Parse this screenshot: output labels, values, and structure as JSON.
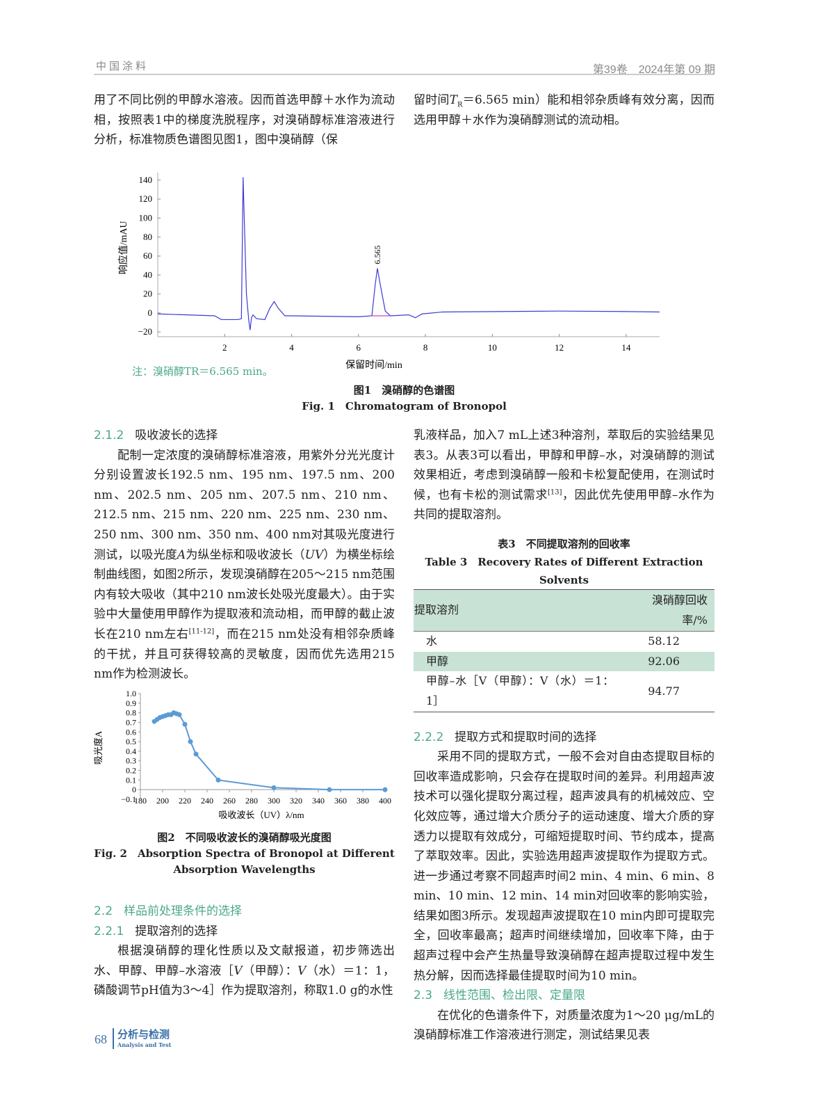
{
  "header": {
    "journal": "中国涂料",
    "issue": "第39卷　2024年第 09 期"
  },
  "left_top": [
    {
      "t": "用了不同比例的甲醇水溶液。因而首选甲醇＋水作为流动相，按照表1中的梯度洗脱程序，对溴硝醇标准溶液进行分析，标准物质色谱图见图1，图中溴硝醇（保"
    }
  ],
  "right_top": [
    {
      "t": "留时间"
    },
    {
      "t": "T",
      "s": "i"
    },
    {
      "t": "R",
      "s": "sub"
    },
    {
      "t": "＝6.565 min）能和相邻杂质峰有效分离，因而选用甲醇＋水作为溴硝醇测试的流动相。"
    }
  ],
  "fig1": {
    "note": "注：溴硝醇TR＝6.565 min。",
    "caption_cn": "图1　溴硝醇的色谱图",
    "caption_en": "Fig. 1　Chromatogram of Bronopol"
  },
  "sec_212": {
    "num": "2.1.2",
    "title": "吸收波长的选择"
  },
  "para_212": [
    {
      "t": "配制一定浓度的溴硝醇标准溶液，用紫外分光光度计分别设置波长192.5 nm、195 nm、197.5 nm、200 nm、202.5 nm、205 nm、207.5 nm、210 nm、212.5 nm、215 nm、220 nm、225 nm、230 nm、250 nm、300 nm、350 nm、400 nm对其吸光度进行测试，以吸光度"
    },
    {
      "t": "A",
      "s": "i"
    },
    {
      "t": "为纵坐标和吸收波长（"
    },
    {
      "t": "UV",
      "s": "i"
    },
    {
      "t": "）为横坐标绘制曲线图，如图2所示，发现溴硝醇在205～215 nm范围内有较大吸收（其中210 nm波长处吸光度最大）。由于实验中大量使用甲醇作为提取液和流动相，而甲醇的截止波长在210 nm左右"
    },
    {
      "t": "[11-12]",
      "s": "sup"
    },
    {
      "t": "，而在215 nm处没有相邻杂质峰的干扰，并且可获得较高的灵敏度，因而优先选用215 nm作为检测波长。"
    }
  ],
  "fig2": {
    "caption_cn": "图2　不同吸收波长的溴硝醇吸光度图",
    "caption_en_1": "Fig. 2　Absorption Spectra of Bronopol at Different",
    "caption_en_2": "Absorption Wavelengths"
  },
  "sec_22": {
    "num": "2.2",
    "title": "样品前处理条件的选择"
  },
  "sec_221": {
    "num": "2.2.1",
    "title": "提取溶剂的选择"
  },
  "para_221": [
    {
      "t": "根据溴硝醇的理化性质以及文献报道，初步筛选出水、甲醇、甲醇–水溶液［"
    },
    {
      "t": "V",
      "s": "i"
    },
    {
      "t": "（甲醇）："
    },
    {
      "t": "V",
      "s": "i"
    },
    {
      "t": "（水）＝1：1，磷酸调节pH值为3～4］作为提取溶剂，称取1.0 g的水性"
    }
  ],
  "para_221b": [
    {
      "t": "乳液样品，加入7 mL上述3种溶剂，萃取后的实验结果见表3。从表3可以看出，甲醇和甲醇–水，对溴硝醇的测试效果相近，考虑到溴硝醇一般和卡松复配使用，在测试时候，也有卡松的测试需求"
    },
    {
      "t": "[13]",
      "s": "sup"
    },
    {
      "t": "，因此优先使用甲醇–水作为共同的提取溶剂。"
    }
  ],
  "table3": {
    "title_cn": "表3　不同提取溶剂的回收率",
    "title_en": "Table 3　Recovery Rates of Different Extraction Solvents",
    "headers": [
      "提取溶剂",
      "溴硝醇回收率/%"
    ],
    "rows": [
      [
        "水",
        "58.12"
      ],
      [
        "甲醇",
        "92.06"
      ],
      [
        "甲醇–水［V（甲醇）：V（水）＝1：1］",
        "94.77"
      ]
    ]
  },
  "sec_222": {
    "num": "2.2.2",
    "title": "提取方式和提取时间的选择"
  },
  "para_222": [
    {
      "t": "采用不同的提取方式，一般不会对自由态提取目标的回收率造成影响，只会存在提取时间的差异。利用超声波技术可以强化提取分离过程，超声波具有的机械效应、空化效应等，通过增大介质分子的运动速度、增大介质的穿透力以提取有效成分，可缩短提取时间、节约成本，提高了萃取效率。因此，实验选用超声波提取作为提取方式。进一步通过考察不同超声时间2 min、4 min、6 min、8 min、10 min、12 min、14 min对回收率的影响实验，结果如图3所示。发现超声波提取在10 min内即可提取完全，回收率最高；超声时间继续增加，回收率下降，由于超声过程中会产生热量导致溴硝醇在超声提取过程中发生热分解，因而选择最佳提取时间为10 min。"
    }
  ],
  "sec_23": {
    "num": "2.3",
    "title": "线性范围、检出限、定量限"
  },
  "para_23": [
    {
      "t": "在优化的色谱条件下，对质量浓度为1～20 μg/mL的溴硝醇标准工作溶液进行测定，测试结果见表"
    }
  ],
  "footer": {
    "page": "68",
    "section": "分析与检测",
    "section_en": "Analysis and Test"
  },
  "colors": {
    "accent": "#4aa88a",
    "table_shade": "#c9e2d6",
    "chromatogram_line": "#3b3bd6",
    "spectrum_line": "#5b9bd5",
    "footer": "#3a6fa8"
  },
  "chart_data": [
    {
      "type": "line",
      "ylabel": "响应值/mAU",
      "xlabel": "保留时间/min",
      "xlim": [
        0,
        15
      ],
      "ylim": [
        -25,
        148
      ],
      "xticks": [
        "2",
        "4",
        "6",
        "8",
        "10",
        "12",
        "14"
      ],
      "yticks": [
        "140",
        "120",
        "100",
        "80",
        "60",
        "40",
        "20",
        "0",
        "−20"
      ],
      "annotation": "6.565",
      "x": [
        0,
        1.7,
        1.9,
        2.4,
        2.5,
        2.55,
        2.65,
        2.72,
        2.76,
        2.8,
        2.85,
        2.9,
        2.95,
        3.2,
        3.35,
        3.48,
        3.6,
        3.8,
        4,
        6,
        6.4,
        6.5,
        6.565,
        6.65,
        6.8,
        6.95,
        7.5,
        7.7,
        7.9,
        8.5,
        12,
        14,
        15
      ],
      "y": [
        -1,
        -3,
        -7,
        -7,
        -6,
        143,
        20,
        -8,
        -18,
        -5,
        -2,
        -4,
        -6,
        -7,
        5,
        12,
        5,
        -3,
        -3,
        -4,
        -3,
        30,
        47,
        30,
        2,
        -3,
        -2,
        -5,
        -1,
        1,
        2,
        1.5,
        1
      ]
    },
    {
      "type": "line",
      "ylabel": "吸光度A",
      "xlabel": "吸收波长（UV）λ/nm",
      "xlim": [
        180,
        400
      ],
      "ylim": [
        -0.1,
        1.0
      ],
      "xticks": [
        "180",
        "200",
        "220",
        "240",
        "260",
        "280",
        "300",
        "320",
        "340",
        "360",
        "380",
        "400"
      ],
      "yticks": [
        "1.0",
        "0.9",
        "0.8",
        "0.7",
        "0.6",
        "0.5",
        "0.4",
        "0.3",
        "0.2",
        "0.1",
        "0",
        "−0.1"
      ],
      "x": [
        192.5,
        195,
        197.5,
        200,
        202.5,
        205,
        207.5,
        210,
        212.5,
        215,
        220,
        225,
        230,
        250,
        300,
        350,
        400
      ],
      "y": [
        0.71,
        0.73,
        0.75,
        0.76,
        0.77,
        0.78,
        0.78,
        0.8,
        0.79,
        0.78,
        0.68,
        0.5,
        0.37,
        0.1,
        0.02,
        0.0,
        0.0
      ]
    }
  ]
}
